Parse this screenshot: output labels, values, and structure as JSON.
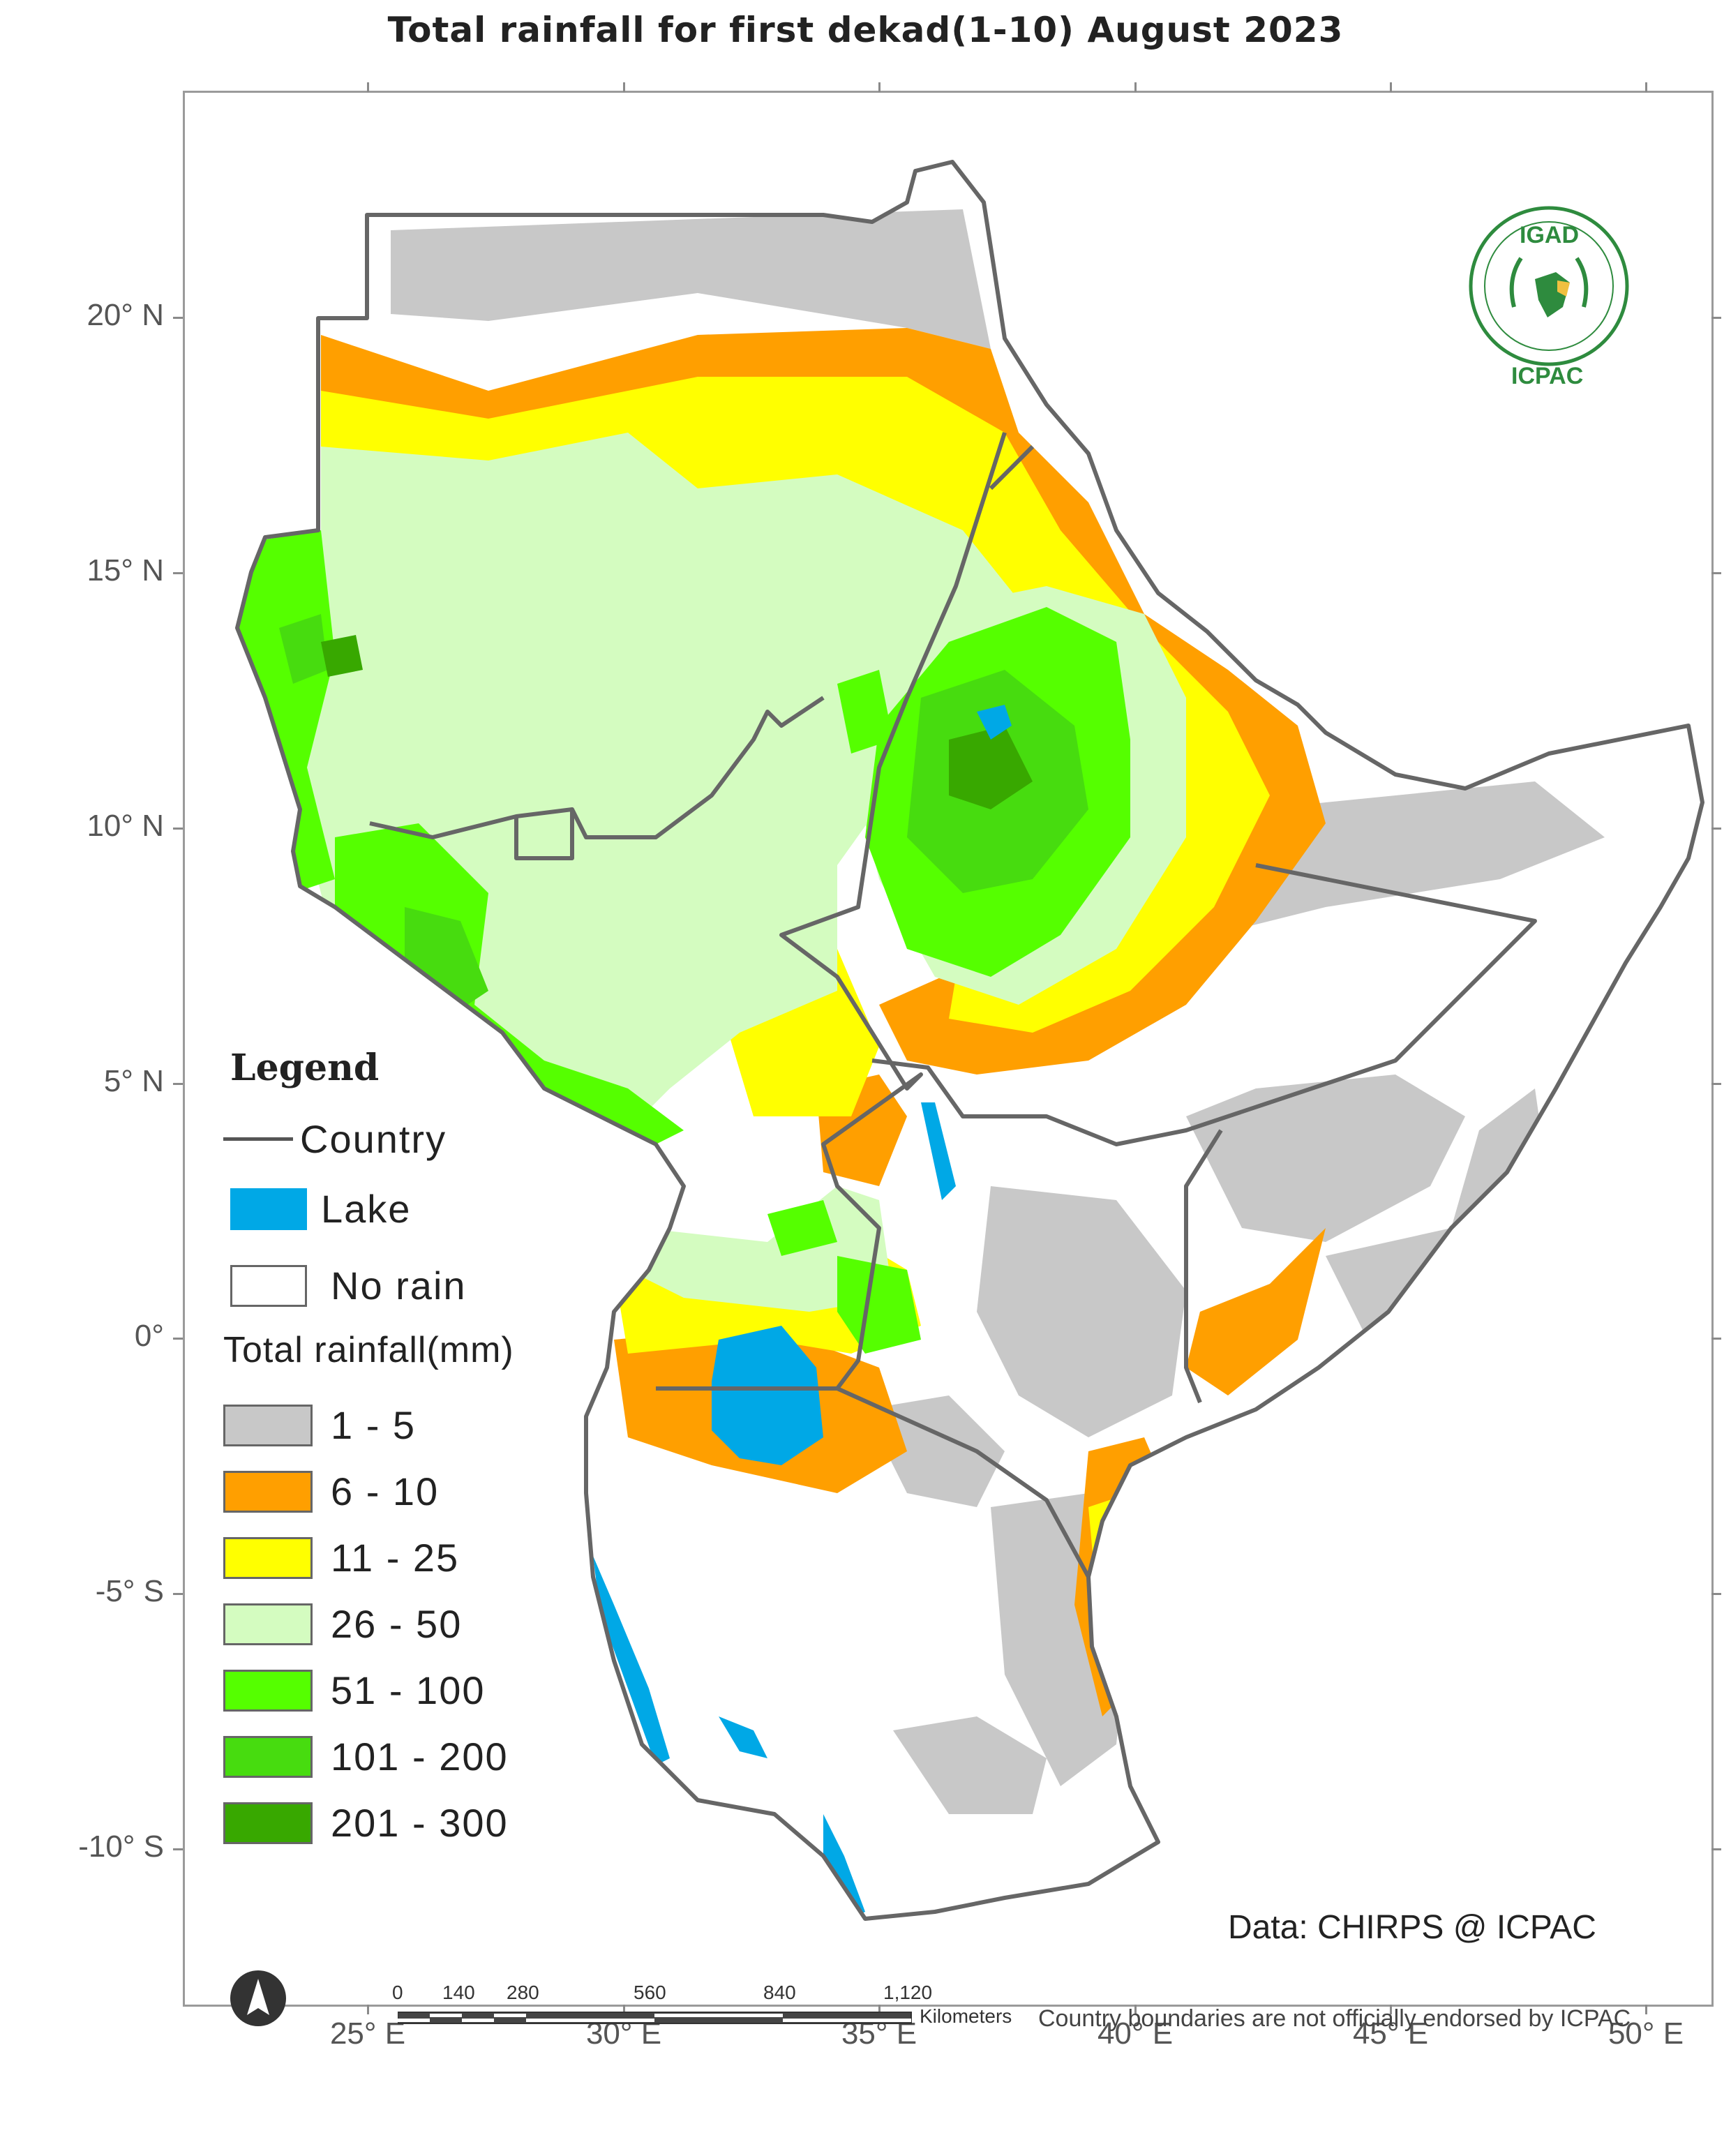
{
  "title": "Total rainfall  for  first dekad(1-10)  August  2023",
  "longitude_labels": [
    "25° E",
    "30° E",
    "35° E",
    "40° E",
    "45° E",
    "50° E"
  ],
  "latitude_labels": [
    "20° N",
    "15° N",
    "10° N",
    "5° N",
    "0°",
    "-5° S",
    "-10° S"
  ],
  "legend": {
    "title": "Legend",
    "country": "Country",
    "lake": "Lake",
    "no_rain": "No rain",
    "rainfall_title": "Total rainfall(mm)",
    "classes": [
      {
        "label": "1 - 5",
        "color": "#c8c8c8"
      },
      {
        "label": "6 - 10",
        "color": "#ff9f00"
      },
      {
        "label": "11 - 25",
        "color": "#ffff00"
      },
      {
        "label": "26 - 50",
        "color": "#d4fcc0"
      },
      {
        "label": "51 - 100",
        "color": "#55ff00"
      },
      {
        "label": "101 - 200",
        "color": "#47dc0f"
      },
      {
        "label": "201 - 300",
        "color": "#38a800"
      }
    ],
    "lake_color": "#00a8e6",
    "border_color": "#666666"
  },
  "logo": {
    "top": "IGAD",
    "bottom": "ICPAC",
    "color": "#2e8b3e"
  },
  "credit": "Data: CHIRPS @ ICPAC",
  "disclaimer": "Country boundaries are not officially endorsed by ICPAC",
  "scale_bar": {
    "ticks": [
      "0",
      "140",
      "280",
      "560",
      "840",
      "1,120"
    ],
    "unit": "Kilometers"
  }
}
